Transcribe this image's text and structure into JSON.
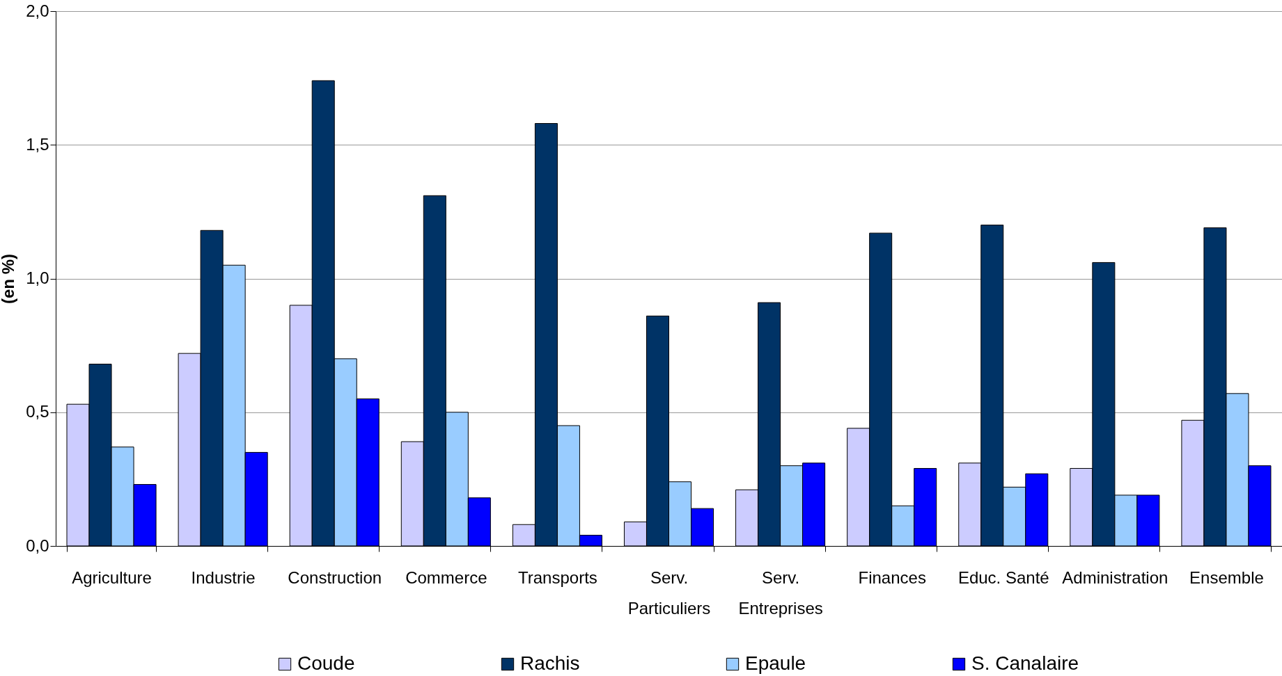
{
  "chart_data": {
    "type": "bar",
    "ylabel": "(en %)",
    "categories": [
      "Agriculture",
      "Industrie",
      "Construction",
      "Commerce",
      "Transports",
      "Serv.\nParticuliers",
      "Serv.\nEntreprises",
      "Finances",
      "Educ. Santé",
      "Administration",
      "Ensemble"
    ],
    "series": [
      {
        "name": "Coude",
        "color": "#ccccff",
        "values": [
          0.53,
          0.72,
          0.9,
          0.39,
          0.08,
          0.09,
          0.21,
          0.44,
          0.31,
          0.29,
          0.47
        ]
      },
      {
        "name": "Rachis",
        "color": "#003366",
        "values": [
          0.68,
          1.18,
          1.74,
          1.31,
          1.58,
          0.86,
          0.91,
          1.17,
          1.2,
          1.06,
          1.19
        ]
      },
      {
        "name": "Epaule",
        "color": "#99ccff",
        "values": [
          0.37,
          1.05,
          0.7,
          0.5,
          0.45,
          0.24,
          0.3,
          0.15,
          0.22,
          0.19,
          0.57
        ]
      },
      {
        "name": "S. Canalaire",
        "color": "#0000ff",
        "values": [
          0.23,
          0.35,
          0.55,
          0.18,
          0.04,
          0.14,
          0.31,
          0.29,
          0.27,
          0.19,
          0.3
        ]
      }
    ],
    "ylim": [
      0,
      2
    ],
    "yticks": [
      {
        "value": 0,
        "label": "0,0"
      },
      {
        "value": 0.5,
        "label": "0,5"
      },
      {
        "value": 1,
        "label": "1,0"
      },
      {
        "value": 1.5,
        "label": "1,5"
      },
      {
        "value": 2,
        "label": "2,0"
      }
    ],
    "grid": "y",
    "legend": "bottom"
  }
}
